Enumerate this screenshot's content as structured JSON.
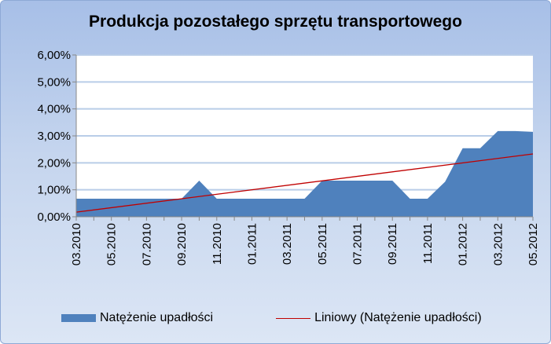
{
  "chart_data": {
    "type": "area",
    "title": "Produkcja pozostałego sprzętu transportowego",
    "x": [
      "03.2010",
      "04.2010",
      "05.2010",
      "06.2010",
      "07.2010",
      "08.2010",
      "09.2010",
      "10.2010",
      "11.2010",
      "12.2010",
      "01.2011",
      "02.2011",
      "03.2011",
      "04.2011",
      "05.2011",
      "06.2011",
      "07.2011",
      "08.2011",
      "09.2011",
      "10.2011",
      "11.2011",
      "12.2011",
      "01.2012",
      "02.2012",
      "03.2012",
      "04.2012",
      "05.2012"
    ],
    "x_tick_labels": [
      "03.2010",
      "05.2010",
      "07.2010",
      "09.2010",
      "11.2010",
      "01.2011",
      "03.2011",
      "05.2011",
      "07.2011",
      "09.2011",
      "11.2011",
      "01.2012",
      "03.2012",
      "05.2012"
    ],
    "series": [
      {
        "name": "Natężenie upadłości",
        "color": "#4f81bd",
        "values": [
          0.67,
          0.67,
          0.67,
          0.67,
          0.67,
          0.67,
          0.67,
          1.34,
          0.67,
          0.67,
          0.67,
          0.67,
          0.67,
          0.67,
          1.34,
          1.34,
          1.34,
          1.34,
          1.34,
          0.67,
          0.67,
          1.3,
          2.54,
          2.54,
          3.18,
          3.18,
          3.15
        ]
      },
      {
        "name": "Liniowy (Natężenie upadłości)",
        "color": "#c00000",
        "type": "linear-trend",
        "values_endpoints": [
          0.17,
          2.33
        ]
      }
    ],
    "ylim": [
      0,
      6
    ],
    "y_ticks": [
      "0,00%",
      "1,00%",
      "2,00%",
      "3,00%",
      "4,00%",
      "5,00%",
      "6,00%"
    ],
    "grid": true,
    "legend": "bottom"
  }
}
